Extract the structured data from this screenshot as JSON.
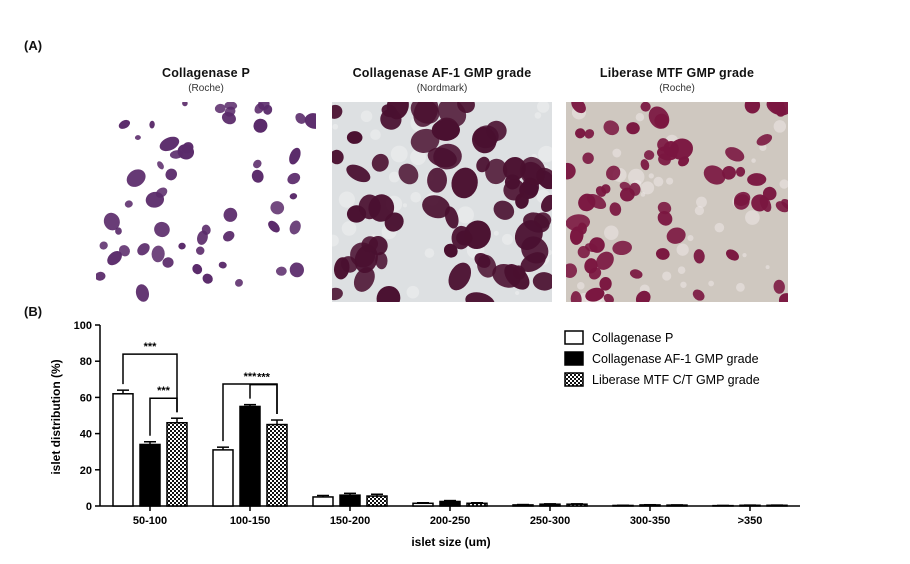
{
  "panel_a": {
    "label": "(A)",
    "photos": [
      {
        "title": "Collagenase  P",
        "source": "(Roche)"
      },
      {
        "title": "Collagenase  AF-1 GMP grade",
        "source": "(Nordmark)"
      },
      {
        "title": "Liberase MTF GMP grade",
        "source": "(Roche)"
      }
    ]
  },
  "panel_b": {
    "label": "(B)"
  },
  "colors": {
    "photo1_bg": "#ffffff",
    "photo1_islet": "#5a2a6a",
    "photo2_bg": "#dde0e2",
    "photo2_islet": "#4a1030",
    "photo3_bg": "#cfc8c0",
    "photo3_islet": "#7a1640"
  },
  "chart_data": {
    "type": "bar",
    "xlabel": "islet size (um)",
    "ylabel": "islet distribution (%)",
    "ylim": [
      0,
      100
    ],
    "yticks": [
      "0",
      "20",
      "40",
      "60",
      "80",
      "100"
    ],
    "categories": [
      "50-100",
      "100-150",
      "150-200",
      "200-250",
      "250-300",
      "300-350",
      ">350"
    ],
    "series": [
      {
        "name": "Collagenase P",
        "pattern": "open",
        "values": [
          62,
          31,
          5,
          1.5,
          0.6,
          0.3,
          0.2
        ],
        "errors": [
          2,
          1.5,
          0.8,
          0.3,
          0.2,
          0.1,
          0.1
        ]
      },
      {
        "name": "Collagenase AF-1 GMP grade",
        "pattern": "solid",
        "values": [
          34,
          55,
          6,
          2.5,
          1,
          0.6,
          0.4
        ],
        "errors": [
          1.5,
          1,
          1,
          0.5,
          0.2,
          0.1,
          0.1
        ]
      },
      {
        "name": "Liberase MTF C/T GMP grade",
        "pattern": "checker",
        "values": [
          46,
          45,
          5.5,
          1.5,
          1,
          0.5,
          0.4
        ],
        "errors": [
          2.5,
          2.5,
          1,
          0.3,
          0.2,
          0.1,
          0.1
        ]
      }
    ],
    "significance": [
      {
        "group": 0,
        "from": 0,
        "to": 2,
        "label": "***",
        "level": 0
      },
      {
        "group": 0,
        "from": 1,
        "to": 2,
        "label": "***",
        "level": 1
      },
      {
        "group": 1,
        "from": 0,
        "to": 2,
        "label": "***",
        "level": 0
      },
      {
        "group": 1,
        "from": 1,
        "to": 2,
        "label": "***",
        "level": 1
      }
    ],
    "legend_position": "top-right"
  }
}
